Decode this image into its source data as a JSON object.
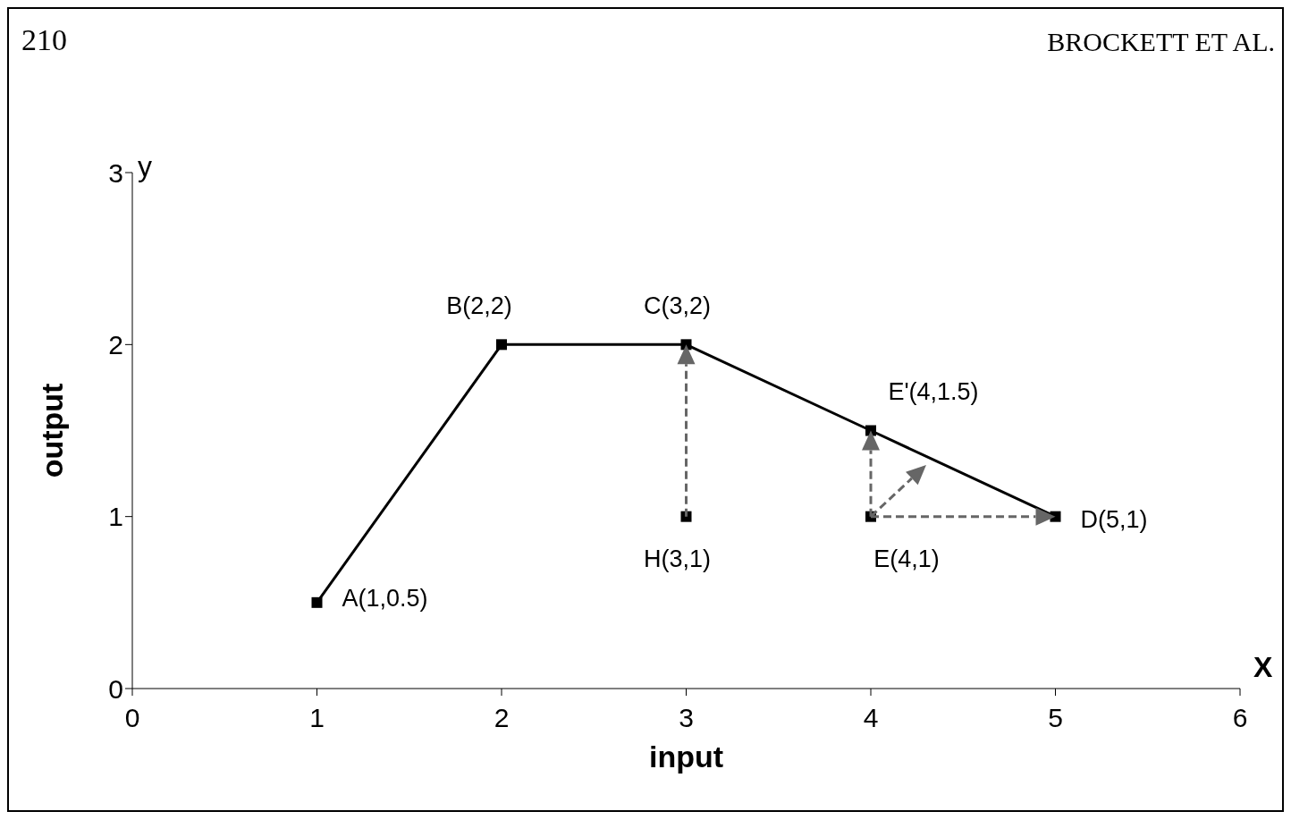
{
  "chart_data": {
    "type": "line",
    "xlabel": "input",
    "ylabel": "output",
    "xlim": [
      0,
      6
    ],
    "ylim": [
      0,
      3
    ],
    "xticks": [
      0,
      1,
      2,
      3,
      4,
      5,
      6
    ],
    "yticks": [
      0,
      1,
      2,
      3
    ],
    "grid": false,
    "series": [
      {
        "color": "#000000",
        "x": [
          1,
          2,
          3,
          4,
          5
        ],
        "values": [
          0.5,
          2,
          2,
          1.5,
          1
        ],
        "marker": "square",
        "line_style": "solid"
      },
      {
        "type": "scatter",
        "color": "#000000",
        "x": [
          3,
          4
        ],
        "values": [
          1,
          1
        ],
        "marker": "square"
      }
    ],
    "annotations": [
      "210",
      "BROCKETT ET AL.",
      "y",
      "X",
      {
        "text": "A(1,0.5)",
        "x": 1,
        "y": 0.5
      },
      {
        "text": "B(2,2)",
        "x": 2,
        "y": 2
      },
      {
        "text": "C(3,2)",
        "x": 3,
        "y": 2
      },
      {
        "text": "E'(4,1.5)",
        "x": 4,
        "y": 1.5
      },
      {
        "text": "D(5,1)",
        "x": 5,
        "y": 1
      },
      {
        "text": "H(3,1)",
        "x": 3,
        "y": 1
      },
      {
        "text": "E(4,1)",
        "x": 4,
        "y": 1
      }
    ]
  }
}
